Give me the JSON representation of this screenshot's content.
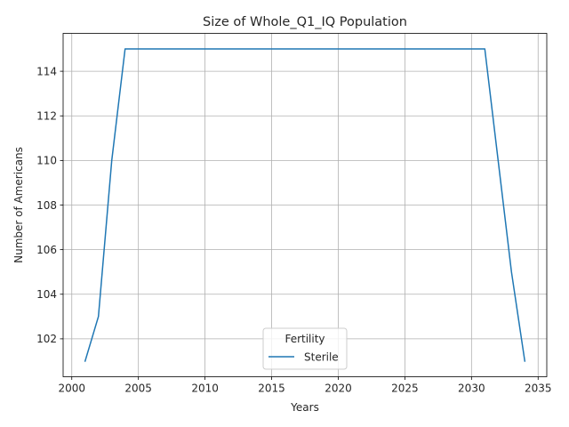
{
  "chart_data": {
    "type": "line",
    "title": "Size of Whole_Q1_IQ Population",
    "xlabel": "Years",
    "ylabel": "Number of Americans",
    "xlim": [
      1999.35,
      2035.65
    ],
    "ylim": [
      100.3,
      115.7
    ],
    "xticks": [
      2000,
      2005,
      2010,
      2015,
      2020,
      2025,
      2030,
      2035
    ],
    "yticks": [
      102,
      104,
      106,
      108,
      110,
      112,
      114
    ],
    "grid": true,
    "legend": {
      "title": "Fertility",
      "placement": "lower-center"
    },
    "series": [
      {
        "name": "Sterile",
        "color": "#1f77b4",
        "x": [
          2001,
          2002,
          2003,
          2004,
          2005,
          2006,
          2007,
          2008,
          2009,
          2010,
          2011,
          2012,
          2013,
          2014,
          2015,
          2016,
          2017,
          2018,
          2019,
          2020,
          2021,
          2022,
          2023,
          2024,
          2025,
          2026,
          2027,
          2028,
          2029,
          2030,
          2031,
          2032,
          2033,
          2034
        ],
        "y": [
          101,
          103,
          110,
          115,
          115,
          115,
          115,
          115,
          115,
          115,
          115,
          115,
          115,
          115,
          115,
          115,
          115,
          115,
          115,
          115,
          115,
          115,
          115,
          115,
          115,
          115,
          115,
          115,
          115,
          115,
          115,
          110,
          105,
          101
        ]
      }
    ]
  }
}
